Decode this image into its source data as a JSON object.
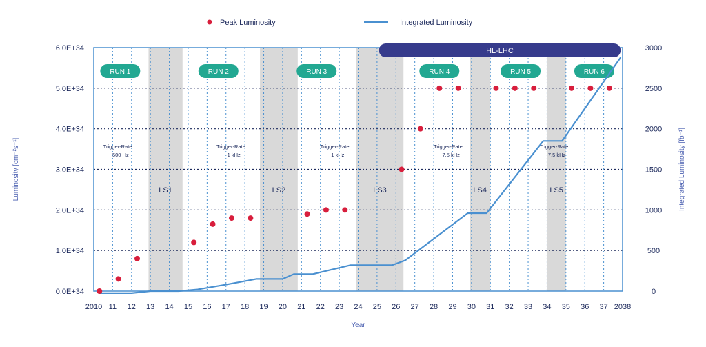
{
  "chart_data": {
    "type": "scatter",
    "legend": {
      "placement": "top-center",
      "peak_label": "Peak Luminosity",
      "integrated_label": "Integrated Luminosity"
    },
    "colors": {
      "peak": "#d81e3c",
      "integrated": "#4a90d0",
      "frame": "#4a90d0",
      "run_badge": "#22a892",
      "ls_band": "#d9d9d9",
      "hl_bar": "#363b8c",
      "text": "#1d2a5c",
      "axis_title": "#4a5fb0"
    },
    "xlabel": "Year",
    "ylabel": "Luminosity [cm⁻²s⁻¹]",
    "y2label": "Integrated Luminosity [fb⁻¹]",
    "xlim": [
      2010,
      2038
    ],
    "ylim": [
      0,
      6.0
    ],
    "y2lim": [
      0,
      3000
    ],
    "x_ticks": [
      "2010",
      "11",
      "12",
      "13",
      "14",
      "15",
      "16",
      "17",
      "18",
      "19",
      "20",
      "21",
      "22",
      "23",
      "24",
      "25",
      "26",
      "27",
      "28",
      "29",
      "30",
      "31",
      "32",
      "33",
      "34",
      "35",
      "36",
      "37",
      "2038"
    ],
    "y_ticks": [
      "0.0E+34",
      "1.0E+34",
      "2.0E+34",
      "3.0E+34",
      "4.0E+34",
      "5.0E+34",
      "6.0E+34"
    ],
    "y2_ticks": [
      "0",
      "500",
      "1000",
      "1500",
      "2000",
      "2500",
      "3000"
    ],
    "peak_luminosity": [
      {
        "x": 2010.3,
        "y": 0.0
      },
      {
        "x": 2011.3,
        "y": 0.3
      },
      {
        "x": 2012.3,
        "y": 0.8
      },
      {
        "x": 2015.3,
        "y": 1.2
      },
      {
        "x": 2016.3,
        "y": 1.65
      },
      {
        "x": 2017.3,
        "y": 1.8
      },
      {
        "x": 2018.3,
        "y": 1.8
      },
      {
        "x": 2021.3,
        "y": 1.9
      },
      {
        "x": 2022.3,
        "y": 2.0
      },
      {
        "x": 2023.3,
        "y": 2.0
      },
      {
        "x": 2026.3,
        "y": 3.0
      },
      {
        "x": 2027.3,
        "y": 4.0
      },
      {
        "x": 2028.3,
        "y": 5.0
      },
      {
        "x": 2029.3,
        "y": 5.0
      },
      {
        "x": 2031.3,
        "y": 5.0
      },
      {
        "x": 2032.3,
        "y": 5.0
      },
      {
        "x": 2033.3,
        "y": 5.0
      },
      {
        "x": 2035.3,
        "y": 5.0
      },
      {
        "x": 2036.3,
        "y": 5.0
      },
      {
        "x": 2037.3,
        "y": 5.0
      }
    ],
    "integrated_luminosity": [
      {
        "x": 2010.3,
        "y": -25
      },
      {
        "x": 2012.0,
        "y": -25
      },
      {
        "x": 2013.0,
        "y": 0
      },
      {
        "x": 2014.5,
        "y": 0
      },
      {
        "x": 2015.5,
        "y": 20
      },
      {
        "x": 2017.0,
        "y": 80
      },
      {
        "x": 2018.6,
        "y": 150
      },
      {
        "x": 2020.0,
        "y": 150
      },
      {
        "x": 2020.6,
        "y": 210
      },
      {
        "x": 2021.6,
        "y": 210
      },
      {
        "x": 2023.6,
        "y": 320
      },
      {
        "x": 2025.8,
        "y": 320
      },
      {
        "x": 2026.5,
        "y": 380
      },
      {
        "x": 2029.8,
        "y": 960
      },
      {
        "x": 2030.8,
        "y": 960
      },
      {
        "x": 2033.8,
        "y": 1850
      },
      {
        "x": 2034.8,
        "y": 1850
      },
      {
        "x": 2037.9,
        "y": 2880
      }
    ],
    "long_shutdowns": [
      {
        "label": "LS1",
        "start": 2012.9,
        "end": 2014.7
      },
      {
        "label": "LS2",
        "start": 2018.8,
        "end": 2020.8
      },
      {
        "label": "LS3",
        "start": 2023.9,
        "end": 2026.4
      },
      {
        "label": "LS4",
        "start": 2029.9,
        "end": 2031.0
      },
      {
        "label": "LS5",
        "start": 2034.0,
        "end": 2035.0
      }
    ],
    "runs": [
      {
        "label": "RUN 1",
        "x": 2011.4
      },
      {
        "label": "RUN 2",
        "x": 2016.6
      },
      {
        "label": "RUN 3",
        "x": 2021.8
      },
      {
        "label": "RUN 4",
        "x": 2028.3
      },
      {
        "label": "RUN 5",
        "x": 2032.6
      },
      {
        "label": "RUN 6",
        "x": 2036.5
      }
    ],
    "trigger_rates": [
      {
        "line1": "Trigger-Rate:",
        "line2": "~ 500 Hz",
        "x": 2011.3
      },
      {
        "line1": "Trigger-Rate:",
        "line2": "~ 1 kHz",
        "x": 2017.3
      },
      {
        "line1": "Trigger-Rate:",
        "line2": "~ 1 kHz",
        "x": 2022.8
      },
      {
        "line1": "Trigger-Rate:",
        "line2": "~ 7.5 kHz",
        "x": 2028.8
      },
      {
        "line1": "Trigger-Rate:",
        "line2": "~ 7.5 kHz",
        "x": 2034.4
      }
    ],
    "hl_lhc": {
      "label": "HL-LHC",
      "start": 2025.1,
      "end": 2037.9
    }
  }
}
